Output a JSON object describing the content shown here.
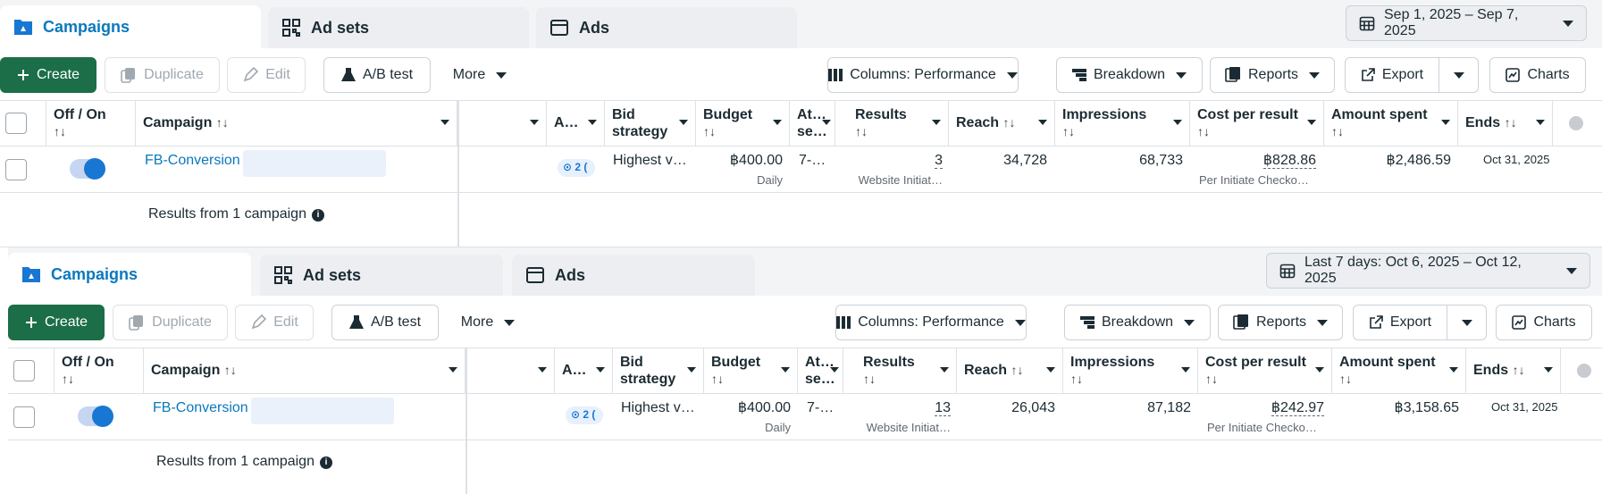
{
  "panels": [
    {
      "tabs": {
        "campaigns": "Campaigns",
        "adsets": "Ad sets",
        "ads": "Ads"
      },
      "date_range": "Sep 1, 2025 – Sep 7, 2025",
      "toolbar": {
        "create": "Create",
        "duplicate": "Duplicate",
        "edit": "Edit",
        "ab_test": "A/B test",
        "more": "More",
        "columns": "Columns: Performance",
        "breakdown": "Breakdown",
        "reports": "Reports",
        "export": "Export",
        "charts": "Charts"
      },
      "headers": {
        "off_on": "Off / On",
        "campaign": "Campaign",
        "a": "A…",
        "bid_strategy_1": "Bid",
        "bid_strategy_2": "strategy",
        "budget": "Budget",
        "attribution_1": "At…",
        "attribution_2": "se…",
        "results": "Results",
        "reach": "Reach",
        "impressions": "Impressions",
        "cost_per_result": "Cost per result",
        "amount_spent": "Amount spent",
        "ends": "Ends",
        "sort_glyph": "↑↓"
      },
      "row": {
        "campaign_name": "FB-Conversion",
        "delivery_badge": "2 (",
        "bid_strategy": "Highest v…",
        "budget": "฿400.00",
        "budget_sub": "Daily",
        "attribution": "7-…",
        "results": "3",
        "results_sub": "Website Initiat…",
        "reach": "34,728",
        "impressions": "68,733",
        "cost_per_result": "฿828.86",
        "cost_sub": "Per Initiate Checko…",
        "amount_spent": "฿2,486.59",
        "ends": "Oct 31, 2025"
      },
      "summary": "Results from 1 campaign"
    },
    {
      "tabs": {
        "campaigns": "Campaigns",
        "adsets": "Ad sets",
        "ads": "Ads"
      },
      "date_range": "Last 7 days: Oct 6, 2025 – Oct 12, 2025",
      "toolbar": {
        "create": "Create",
        "duplicate": "Duplicate",
        "edit": "Edit",
        "ab_test": "A/B test",
        "more": "More",
        "columns": "Columns: Performance",
        "breakdown": "Breakdown",
        "reports": "Reports",
        "export": "Export",
        "charts": "Charts"
      },
      "headers": {
        "off_on": "Off / On",
        "campaign": "Campaign",
        "a": "A…",
        "bid_strategy_1": "Bid",
        "bid_strategy_2": "strategy",
        "budget": "Budget",
        "attribution_1": "At…",
        "attribution_2": "se…",
        "results": "Results",
        "reach": "Reach",
        "impressions": "Impressions",
        "cost_per_result": "Cost per result",
        "amount_spent": "Amount spent",
        "ends": "Ends",
        "sort_glyph": "↑↓"
      },
      "row": {
        "campaign_name": "FB-Conversion",
        "delivery_badge": "2 (",
        "bid_strategy": "Highest v…",
        "budget": "฿400.00",
        "budget_sub": "Daily",
        "attribution": "7-…",
        "results": "13",
        "results_sub": "Website Initiat…",
        "reach": "26,043",
        "impressions": "87,182",
        "cost_per_result": "฿242.97",
        "cost_sub": "Per Initiate Checko…",
        "amount_spent": "฿3,158.65",
        "ends": "Oct 31, 2025"
      },
      "summary": "Results from 1 campaign"
    }
  ],
  "colors": {
    "accent": "#0a78be",
    "primary_button": "#1b6e48",
    "toggle_on": "#1877d2"
  }
}
